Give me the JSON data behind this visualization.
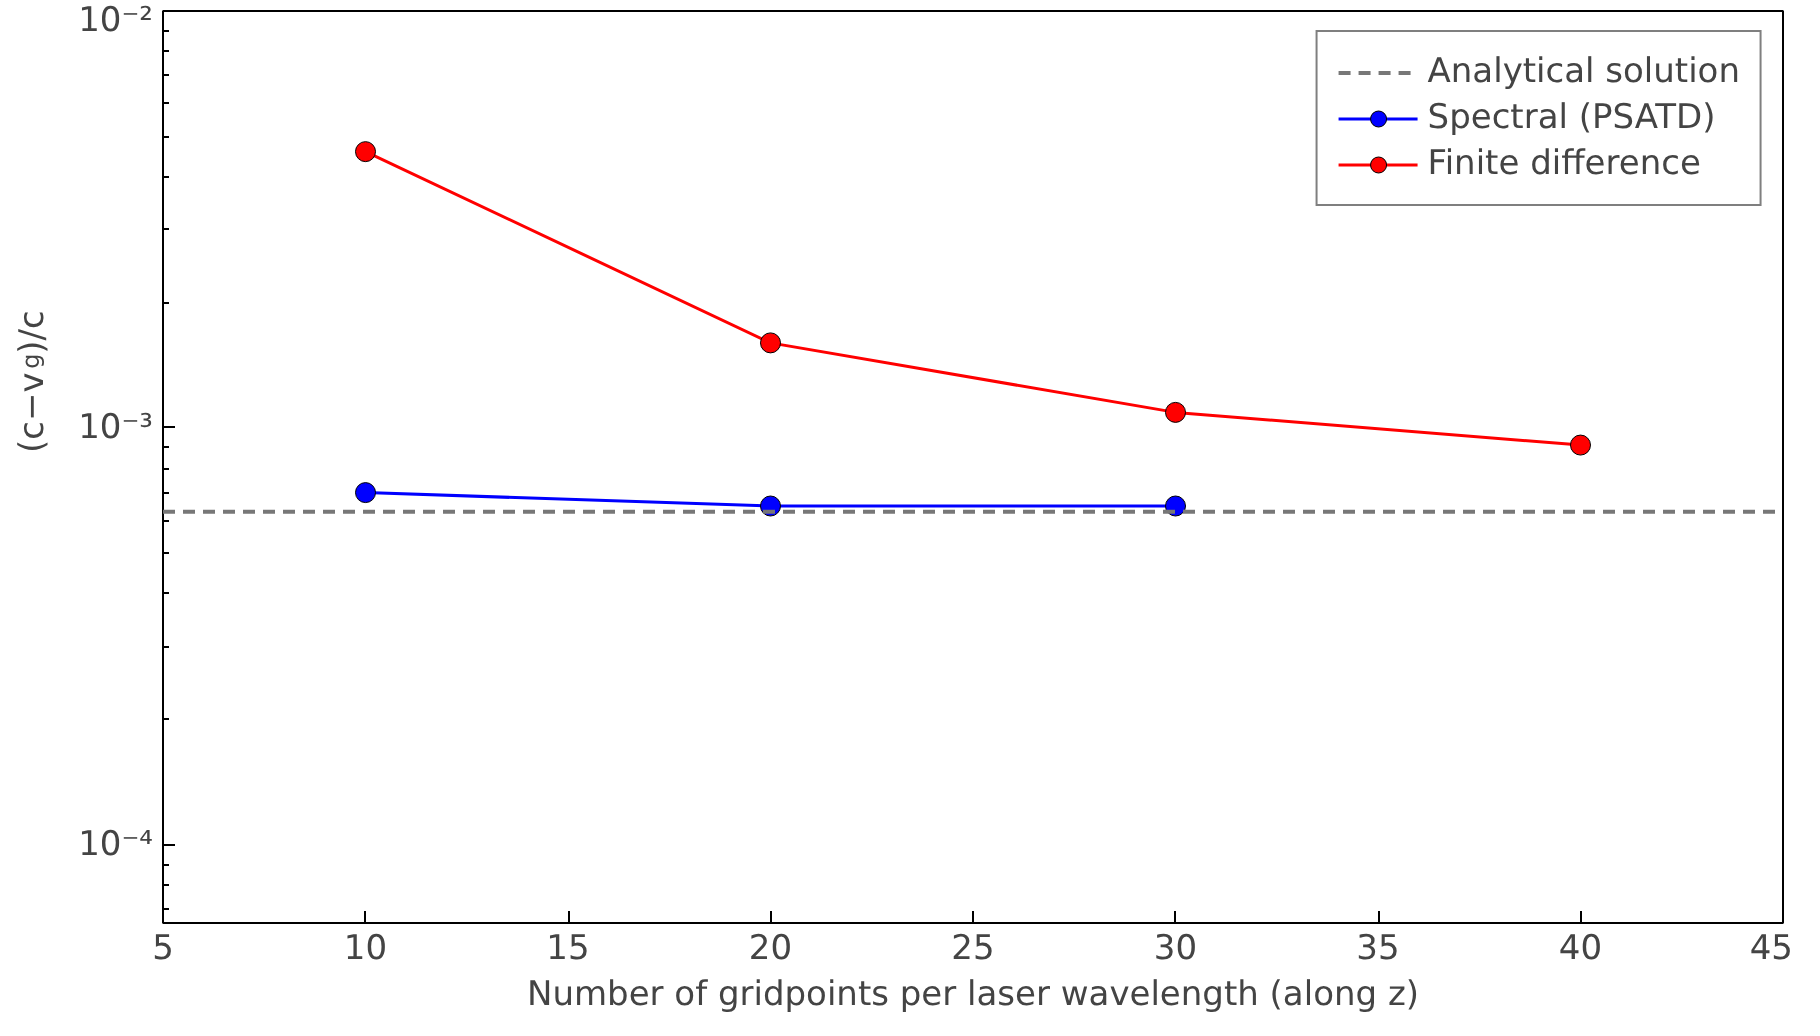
{
  "chart_data": {
    "type": "line",
    "xlabel": "Number of gridpoints per laser wavelength (along z)",
    "ylabel": "(c−v$_{g}$)/c",
    "x": [
      10,
      20,
      30,
      40
    ],
    "series": [
      {
        "name": "Spectral (PSATD)",
        "color": "#0000ff",
        "values": [
          0.0007,
          0.00065,
          0.00065,
          null
        ]
      },
      {
        "name": "Finite difference",
        "color": "#ff0000",
        "values": [
          0.0046,
          0.0016,
          0.00109,
          0.00091
        ]
      }
    ],
    "ref_lines": [
      {
        "axis": "y",
        "value": 0.00063,
        "label": "Analytical solution",
        "color": "#777777",
        "line_style": "dashed"
      }
    ],
    "log": true,
    "xlim": [
      5,
      45
    ],
    "xticks": [
      5,
      10,
      15,
      20,
      25,
      30,
      35,
      40,
      45
    ],
    "ylim": [
      6.5e-05,
      0.01
    ],
    "yticks": [
      {
        "value": 0.0001,
        "label": "10⁻⁴"
      },
      {
        "value": 0.001,
        "label": "10⁻³"
      },
      {
        "value": 0.01,
        "label": "10⁻²"
      }
    ],
    "legend": "top right",
    "marker": "circle",
    "line_style": "solid",
    "grid": false
  }
}
